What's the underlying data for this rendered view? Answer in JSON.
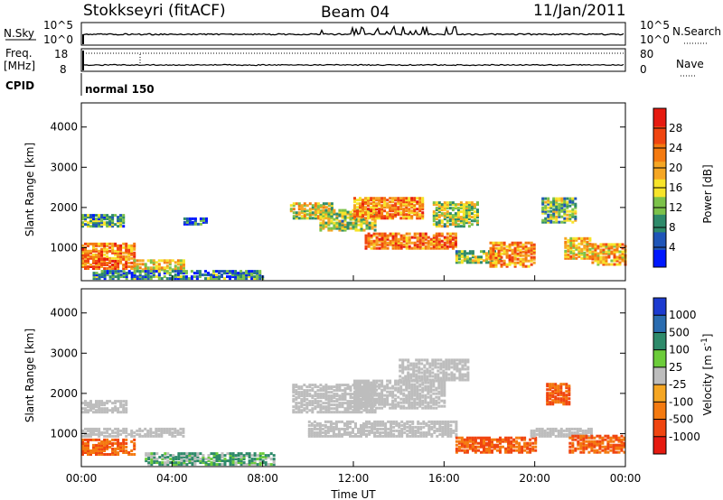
{
  "header": {
    "station": "Stokkseyri (fitACF)",
    "beam": "Beam 04",
    "date": "11/Jan/2011"
  },
  "params": {
    "nsky_label": "N.Sky",
    "nsky_ticks": [
      "10^5",
      "10^0"
    ],
    "nsearch_label": "N.Search",
    "nsearch_ticks": [
      "10^5",
      "10^0"
    ],
    "freq_label_1": "Freq.",
    "freq_label_2": "[MHz]",
    "freq_ticks": [
      "18",
      "8"
    ],
    "nave_label": "Nave",
    "nave_ticks": [
      "80",
      "0"
    ],
    "cpid_label": "CPID",
    "cpid_value": "normal 150"
  },
  "chart_data": [
    {
      "type": "heatmap",
      "title": "",
      "xlabel": "",
      "ylabel": "Slant Range [km]",
      "x_ticks": [
        "00:00",
        "04:00",
        "08:00",
        "12:00",
        "16:00",
        "20:00",
        "00:00"
      ],
      "xlim_hours": [
        0,
        24
      ],
      "y_ticks": [
        1000,
        2000,
        3000,
        4000
      ],
      "ylim_km": [
        180,
        4600
      ],
      "colorbar": {
        "label": "Power [dB]",
        "ticks": [
          4,
          8,
          12,
          16,
          20,
          24,
          28
        ],
        "range": [
          0,
          32
        ],
        "colors": [
          "#0018ff",
          "#1f55b8",
          "#2e8a6a",
          "#7cc24a",
          "#f7e42a",
          "#f5a623",
          "#f47a10",
          "#f04510",
          "#e61a10"
        ]
      },
      "regions": [
        {
          "t": [
            0.0,
            1.9
          ],
          "r": [
            1500,
            1800
          ],
          "level": 10
        },
        {
          "t": [
            0.0,
            2.3
          ],
          "r": [
            700,
            1100
          ],
          "level": 22
        },
        {
          "t": [
            0.0,
            2.3
          ],
          "r": [
            450,
            700
          ],
          "level": 24
        },
        {
          "t": [
            2.3,
            4.5
          ],
          "r": [
            420,
            650
          ],
          "level": 18
        },
        {
          "t": [
            0.5,
            8.0
          ],
          "r": [
            200,
            400
          ],
          "level": 8
        },
        {
          "t": [
            4.5,
            5.5
          ],
          "r": [
            1550,
            1700
          ],
          "level": 6
        },
        {
          "t": [
            9.2,
            11.0
          ],
          "r": [
            1700,
            2100
          ],
          "level": 16
        },
        {
          "t": [
            10.5,
            13.0
          ],
          "r": [
            1400,
            1900
          ],
          "level": 14
        },
        {
          "t": [
            12.0,
            15.0
          ],
          "r": [
            1700,
            2200
          ],
          "level": 22
        },
        {
          "t": [
            12.5,
            16.5
          ],
          "r": [
            950,
            1350
          ],
          "level": 24
        },
        {
          "t": [
            15.5,
            17.5
          ],
          "r": [
            1500,
            2100
          ],
          "level": 14
        },
        {
          "t": [
            16.5,
            18.5
          ],
          "r": [
            600,
            900
          ],
          "level": 14
        },
        {
          "t": [
            18.0,
            20.0
          ],
          "r": [
            500,
            1100
          ],
          "level": 22
        },
        {
          "t": [
            20.3,
            21.8
          ],
          "r": [
            1600,
            2200
          ],
          "level": 12
        },
        {
          "t": [
            21.3,
            22.5
          ],
          "r": [
            700,
            1200
          ],
          "level": 18
        },
        {
          "t": [
            22.5,
            24.0
          ],
          "r": [
            550,
            1050
          ],
          "level": 20
        }
      ]
    },
    {
      "type": "heatmap",
      "title": "",
      "xlabel": "Time UT",
      "ylabel": "Slant Range [km]",
      "x_ticks": [
        "00:00",
        "04:00",
        "08:00",
        "12:00",
        "16:00",
        "20:00",
        "00:00"
      ],
      "xlim_hours": [
        0,
        24
      ],
      "y_ticks": [
        1000,
        2000,
        3000,
        4000
      ],
      "ylim_km": [
        180,
        4600
      ],
      "colorbar": {
        "label": "Velocity [m s",
        "label_sup": "-1",
        "label_end": "]",
        "ticks": [
          "1000",
          "500",
          "100",
          "25",
          "-25",
          "-100",
          "-500",
          "-1000"
        ],
        "colors": [
          "#1c3bd0",
          "#2a6cb0",
          "#2e8a6a",
          "#6ccc3a",
          "#bdbdbd",
          "#f5a623",
          "#f47a10",
          "#f04510",
          "#e61a10"
        ]
      },
      "regions": [
        {
          "t": [
            0.0,
            2.0
          ],
          "r": [
            1500,
            1800
          ],
          "v": 0
        },
        {
          "t": [
            0.0,
            4.5
          ],
          "r": [
            900,
            1100
          ],
          "v": 0
        },
        {
          "t": [
            0.0,
            2.4
          ],
          "r": [
            450,
            850
          ],
          "v": -300
        },
        {
          "t": [
            2.8,
            8.5
          ],
          "r": [
            200,
            500
          ],
          "v": 80
        },
        {
          "t": [
            9.3,
            13.0
          ],
          "r": [
            1500,
            2200
          ],
          "v": 0
        },
        {
          "t": [
            12.0,
            16.0
          ],
          "r": [
            1600,
            2300
          ],
          "v": 0
        },
        {
          "t": [
            14.0,
            17.0
          ],
          "r": [
            2300,
            2800
          ],
          "v": 0
        },
        {
          "t": [
            10.0,
            16.5
          ],
          "r": [
            900,
            1300
          ],
          "v": 0
        },
        {
          "t": [
            16.5,
            20.0
          ],
          "r": [
            500,
            900
          ],
          "v": -300
        },
        {
          "t": [
            19.8,
            22.5
          ],
          "r": [
            900,
            1100
          ],
          "v": 0
        },
        {
          "t": [
            20.5,
            21.5
          ],
          "r": [
            1700,
            2200
          ],
          "v": -300
        },
        {
          "t": [
            21.5,
            24.0
          ],
          "r": [
            500,
            950
          ],
          "v": -300
        }
      ]
    }
  ]
}
